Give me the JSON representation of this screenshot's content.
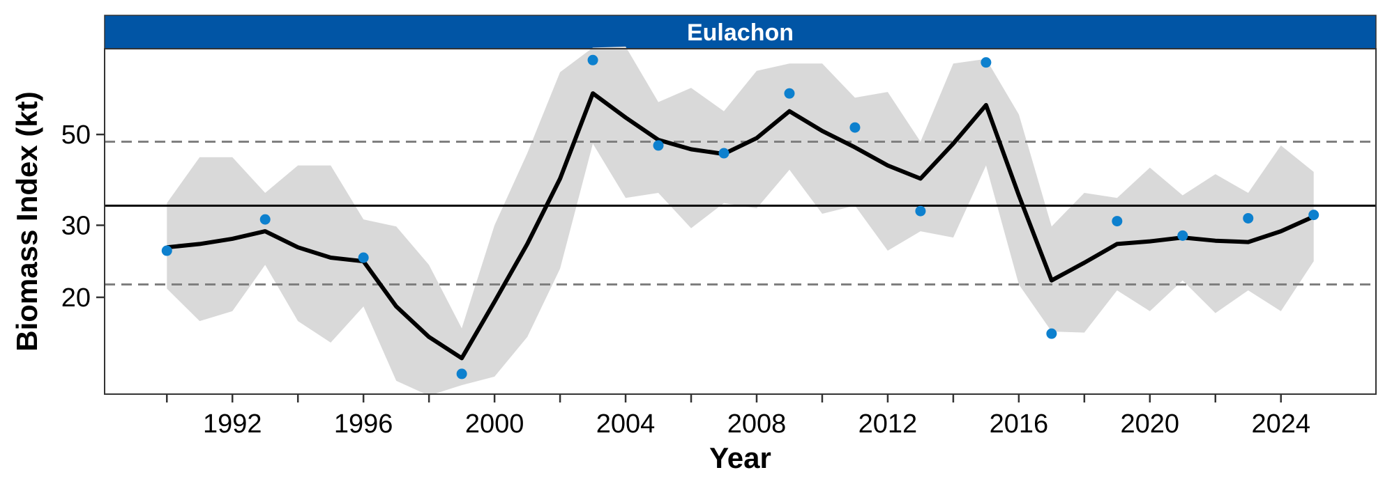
{
  "chart_data": {
    "type": "line",
    "panel_title": "Eulachon",
    "xlabel": "Year",
    "ylabel": "Biomass Index (kt)",
    "scale": "log",
    "xlim": [
      1988.1,
      2026.9
    ],
    "ylim": [
      11.6,
      81.0
    ],
    "x_ticks": [
      1990,
      1992,
      1994,
      1996,
      1998,
      2000,
      2002,
      2004,
      2006,
      2008,
      2010,
      2012,
      2014,
      2016,
      2018,
      2020,
      2022,
      2024
    ],
    "x_tick_labels": [
      "1992",
      "1996",
      "2000",
      "2004",
      "2008",
      "2012",
      "2016",
      "2020",
      "2024"
    ],
    "x_tick_label_values": [
      1992,
      1996,
      2000,
      2004,
      2008,
      2012,
      2016,
      2020,
      2024
    ],
    "y_ticks": [
      20,
      30,
      50
    ],
    "y_tick_labels": [
      "20",
      "30",
      "50"
    ],
    "reference_lines": {
      "mean": 33.5,
      "upper": 48.0,
      "lower": 21.5
    },
    "series": [
      {
        "kind": "fit",
        "x": [
          1990,
          1991,
          1992,
          1993,
          1994,
          1995,
          1996,
          1997,
          1998,
          1999,
          2000,
          2001,
          2002,
          2003,
          2004,
          2005,
          2006,
          2007,
          2008,
          2009,
          2010,
          2011,
          2012,
          2013,
          2014,
          2015,
          2016,
          2017,
          2018,
          2019,
          2020,
          2021,
          2022,
          2023,
          2024,
          2025
        ],
        "y": [
          26.5,
          27.0,
          27.8,
          29.0,
          26.5,
          25.0,
          24.5,
          19.0,
          16.0,
          14.2,
          19.5,
          27.0,
          39.0,
          63.0,
          55.0,
          48.5,
          46.0,
          44.8,
          49.0,
          57.0,
          51.0,
          46.5,
          42.0,
          39.0,
          47.5,
          59.0,
          35.5,
          22.0,
          24.3,
          27.0,
          27.4,
          28.0,
          27.5,
          27.3,
          29.0,
          31.5
        ],
        "lower": [
          21.0,
          17.5,
          18.5,
          24.0,
          17.5,
          15.5,
          19.0,
          12.5,
          11.5,
          12.2,
          12.8,
          16.0,
          23.5,
          47.5,
          35.0,
          36.0,
          29.5,
          34.0,
          33.0,
          41.0,
          32.0,
          33.5,
          26.0,
          29.0,
          28.0,
          42.0,
          21.5,
          16.5,
          16.4,
          20.8,
          18.5,
          22.0,
          18.3,
          20.8,
          18.5,
          24.5
        ],
        "upper": [
          34.0,
          44.0,
          44.0,
          36.0,
          42.0,
          42.0,
          31.0,
          29.8,
          24.0,
          16.8,
          30.0,
          45.0,
          71.0,
          81.5,
          82.0,
          60.0,
          65.0,
          57.0,
          71.5,
          74.5,
          74.5,
          61.5,
          63.5,
          48.0,
          74.5,
          76.5,
          56.0,
          29.8,
          36.0,
          35.0,
          41.5,
          35.5,
          40.0,
          36.0,
          47.0,
          40.5
        ]
      },
      {
        "kind": "observed",
        "x": [
          1990,
          1993,
          1996,
          1999,
          2003,
          2005,
          2007,
          2009,
          2011,
          2013,
          2015,
          2017,
          2019,
          2021,
          2023,
          2025
        ],
        "y": [
          26.0,
          31.0,
          25.0,
          13.0,
          76.0,
          47.0,
          45.0,
          63.0,
          52.0,
          32.5,
          75.0,
          16.3,
          30.7,
          28.3,
          31.2,
          31.8
        ]
      }
    ],
    "colors": {
      "strip": "#0155a5",
      "ribbon": "#d9d9d9",
      "fit_line": "#000000",
      "points": "#0d80ce",
      "dashed": "#7f7f7f",
      "mean_line": "#000000"
    }
  }
}
